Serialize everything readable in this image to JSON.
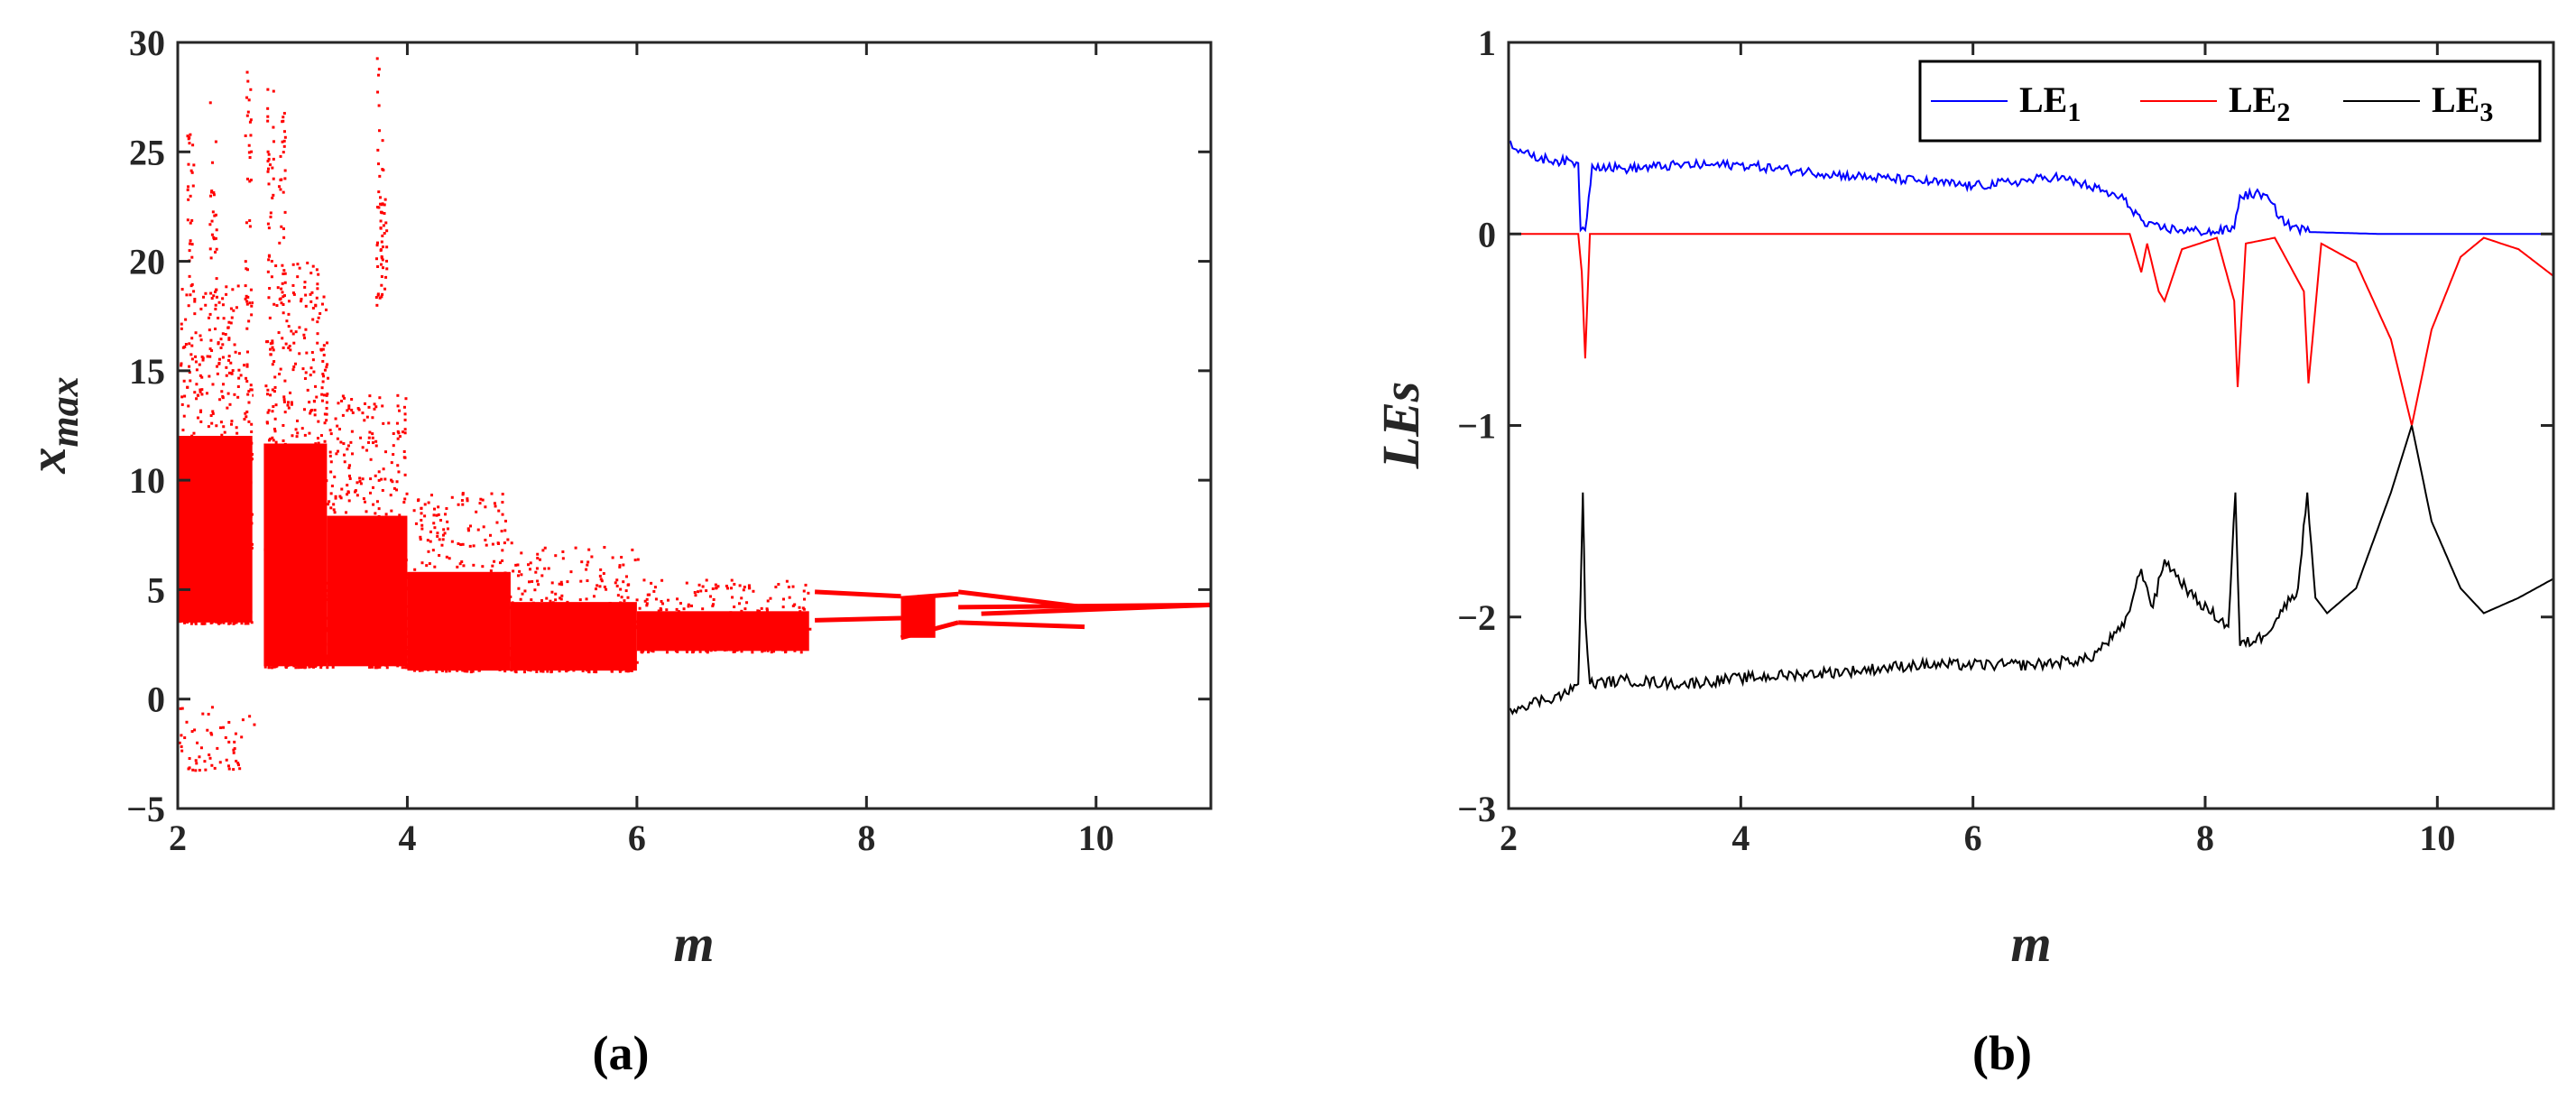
{
  "colors": {
    "red": "#ff0000",
    "blue": "#0000ff",
    "black": "#000000",
    "axis": "#262626"
  },
  "chart_data": [
    {
      "type": "scatter",
      "panel_label": "(a)",
      "xlabel": "m",
      "ylabel": {
        "base": "x",
        "sub": "max"
      },
      "xlim": [
        2,
        11
      ],
      "ylim": [
        -5,
        30
      ],
      "xticks": [
        "2",
        "4",
        "6",
        "8",
        "10"
      ],
      "yticks": [
        "−5",
        "0",
        "5",
        "10",
        "15",
        "20",
        "25",
        "30"
      ],
      "series": [
        {
          "color": "#ff0000",
          "bands": [
            {
              "x0": 2.0,
              "x1": 2.65,
              "lo": 3.5,
              "hi": 19.0,
              "dense": 1.0
            },
            {
              "x0": 2.75,
              "x1": 3.3,
              "lo": 1.5,
              "hi": 20.0,
              "dense": 1.0
            },
            {
              "x0": 3.3,
              "x1": 4.0,
              "lo": 1.5,
              "hi": 14.0,
              "dense": 0.85
            },
            {
              "x0": 4.0,
              "x1": 4.9,
              "lo": 1.3,
              "hi": 9.5,
              "dense": 0.75
            },
            {
              "x0": 4.9,
              "x1": 6.0,
              "lo": 1.3,
              "hi": 7.0,
              "dense": 1.0
            },
            {
              "x0": 6.0,
              "x1": 7.5,
              "lo": 2.2,
              "hi": 5.5,
              "dense": 1.0
            },
            {
              "x0": 2.0,
              "x1": 2.55,
              "lo": -3.2,
              "hi": -0.3,
              "dense": 0.6
            },
            {
              "x0": 2.55,
              "x1": 2.8,
              "lo": -1.2,
              "hi": -0.3,
              "dense": 0.25
            }
          ],
          "branches": [
            {
              "x": [
                7.55,
                8.3
              ],
              "y": [
                4.9,
                4.7
              ]
            },
            {
              "x": [
                7.55,
                8.3
              ],
              "y": [
                3.6,
                3.7
              ]
            },
            {
              "x": [
                8.3,
                8.8
              ],
              "y": [
                4.6,
                4.8
              ]
            },
            {
              "x": [
                8.3,
                8.8
              ],
              "y": [
                2.8,
                3.5
              ]
            },
            {
              "x": [
                8.8,
                9.9
              ],
              "y": [
                4.9,
                4.2
              ]
            },
            {
              "x": [
                8.8,
                9.9
              ],
              "y": [
                3.5,
                3.3
              ]
            },
            {
              "x": [
                8.8,
                11.0
              ],
              "y": [
                4.2,
                4.3
              ]
            },
            {
              "x": [
                9.0,
                11.0
              ],
              "y": [
                3.9,
                4.3
              ]
            },
            {
              "x": [
                9.9,
                11.0
              ],
              "y": [
                4.2,
                4.3
              ]
            }
          ]
        }
      ]
    },
    {
      "type": "line",
      "panel_label": "(b)",
      "xlabel": "m",
      "ylabel": "LEs",
      "xlim": [
        2,
        11
      ],
      "ylim": [
        -3,
        1
      ],
      "xticks": [
        "2",
        "4",
        "6",
        "8",
        "10"
      ],
      "yticks": [
        "−3",
        "−2",
        "−1",
        "0",
        "1"
      ],
      "legend": {
        "position": "top-right"
      },
      "series": [
        {
          "name": "LE",
          "name_sub": "1",
          "color": "#0000ff",
          "x": [
            2.0,
            2.2,
            2.6,
            2.62,
            2.66,
            2.72,
            3.0,
            3.5,
            4.0,
            4.5,
            5.0,
            5.5,
            6.0,
            6.5,
            6.7,
            7.0,
            7.3,
            7.5,
            7.8,
            8.1,
            8.25,
            8.3,
            8.5,
            8.7,
            8.9,
            9.5,
            10.0,
            10.5,
            11.0
          ],
          "y": [
            0.48,
            0.4,
            0.37,
            0.02,
            0.02,
            0.36,
            0.34,
            0.36,
            0.36,
            0.33,
            0.3,
            0.28,
            0.25,
            0.28,
            0.3,
            0.25,
            0.18,
            0.04,
            0.02,
            0.01,
            0.03,
            0.2,
            0.21,
            0.05,
            0.01,
            0.0,
            0.0,
            0.0,
            0.0
          ]
        },
        {
          "name": "LE",
          "name_sub": "2",
          "color": "#ff0000",
          "x": [
            2.0,
            2.6,
            2.63,
            2.66,
            2.7,
            3.0,
            4.0,
            5.0,
            6.0,
            7.0,
            7.35,
            7.45,
            7.5,
            7.6,
            7.65,
            7.8,
            8.1,
            8.25,
            8.28,
            8.35,
            8.6,
            8.85,
            8.89,
            9.0,
            9.3,
            9.6,
            9.78,
            9.95,
            10.2,
            10.4,
            10.7,
            11.0
          ],
          "y": [
            0.0,
            0.0,
            -0.2,
            -0.65,
            0.0,
            0.0,
            0.0,
            0.0,
            0.0,
            0.0,
            0.0,
            -0.2,
            -0.05,
            -0.3,
            -0.35,
            -0.08,
            -0.02,
            -0.35,
            -0.8,
            -0.05,
            -0.02,
            -0.3,
            -0.78,
            -0.05,
            -0.15,
            -0.55,
            -1.0,
            -0.5,
            -0.12,
            -0.02,
            -0.08,
            -0.22
          ]
        },
        {
          "name": "LE",
          "name_sub": "3",
          "color": "#000000",
          "x": [
            2.0,
            2.5,
            2.6,
            2.64,
            2.66,
            2.7,
            3.0,
            3.5,
            4.0,
            4.5,
            5.0,
            5.5,
            6.0,
            6.5,
            7.0,
            7.3,
            7.45,
            7.55,
            7.65,
            7.9,
            8.2,
            8.26,
            8.3,
            8.5,
            8.8,
            8.88,
            8.95,
            9.05,
            9.3,
            9.6,
            9.78,
            9.95,
            10.2,
            10.4,
            10.7,
            11.0
          ],
          "y": [
            -2.48,
            -2.4,
            -2.35,
            -1.35,
            -2.0,
            -2.35,
            -2.33,
            -2.35,
            -2.32,
            -2.3,
            -2.28,
            -2.25,
            -2.25,
            -2.25,
            -2.22,
            -2.05,
            -1.75,
            -1.95,
            -1.7,
            -1.9,
            -2.05,
            -1.35,
            -2.15,
            -2.1,
            -1.85,
            -1.35,
            -1.9,
            -1.98,
            -1.85,
            -1.35,
            -1.0,
            -1.5,
            -1.85,
            -1.98,
            -1.9,
            -1.8
          ]
        }
      ]
    }
  ]
}
